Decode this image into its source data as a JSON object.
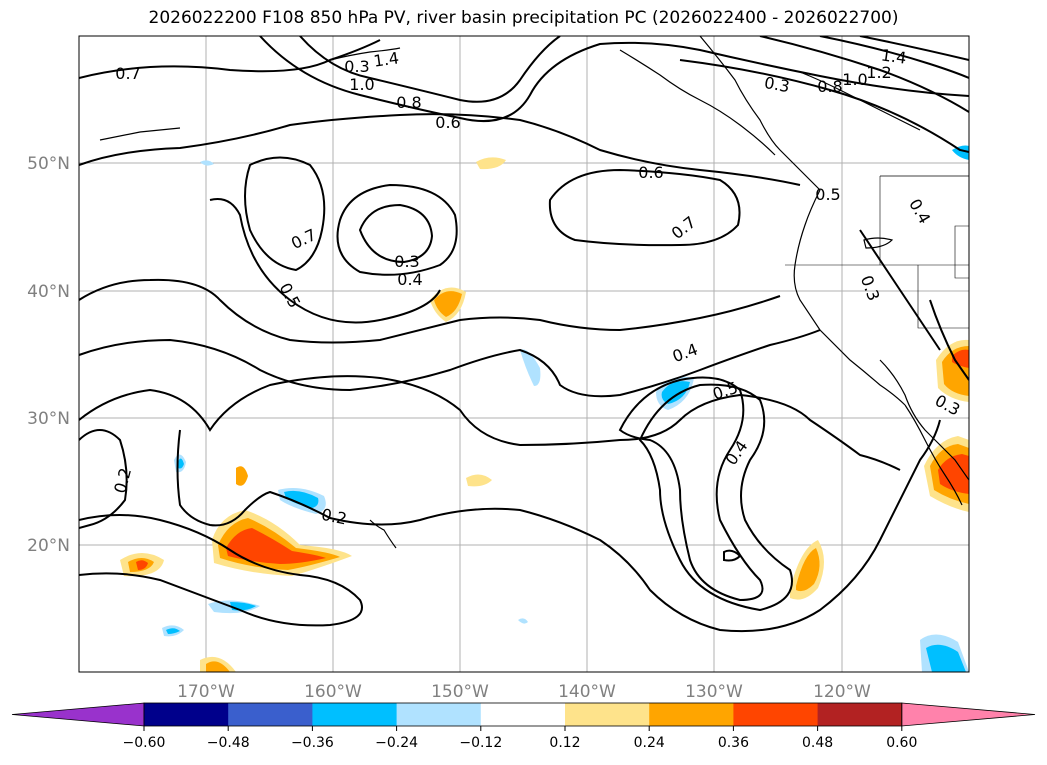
{
  "title": "2026022200 F108 850 hPa PV, river basin precipitation PC (2026022400 - 2026022700)",
  "lat_labels": [
    "50°N",
    "40°N",
    "30°N",
    "20°N"
  ],
  "lon_labels": [
    "170°W",
    "160°W",
    "150°W",
    "140°W",
    "130°W",
    "120°W"
  ],
  "colorbar": {
    "ticks": [
      "−0.60",
      "−0.48",
      "−0.36",
      "−0.24",
      "−0.12",
      "0.12",
      "0.24",
      "0.36",
      "0.48",
      "0.60"
    ],
    "colors": [
      "#9932cc",
      "#00008b",
      "#3a5fcd",
      "#00bfff",
      "#b0e2ff",
      "#ffffff",
      "#fee38b",
      "#ffa500",
      "#ff4500",
      "#b22222",
      "#ff82ab"
    ]
  },
  "contour_labels": [
    "0.7",
    "1.4",
    "1.0",
    "0.8",
    "0.6",
    "0.3",
    "0.4",
    "1.2",
    "1.0",
    "0.6",
    "0.5",
    "0.7",
    "0.7",
    "0.3",
    "0.4",
    "0.5",
    "0.3",
    "0.4",
    "0.5",
    "0.4",
    "0.3",
    "0.2",
    "0.2",
    "0.3",
    "1.4",
    "0.8"
  ],
  "colors": {
    "contour": "#000000",
    "grid": "#b0b0b0",
    "coast": "#000000"
  }
}
